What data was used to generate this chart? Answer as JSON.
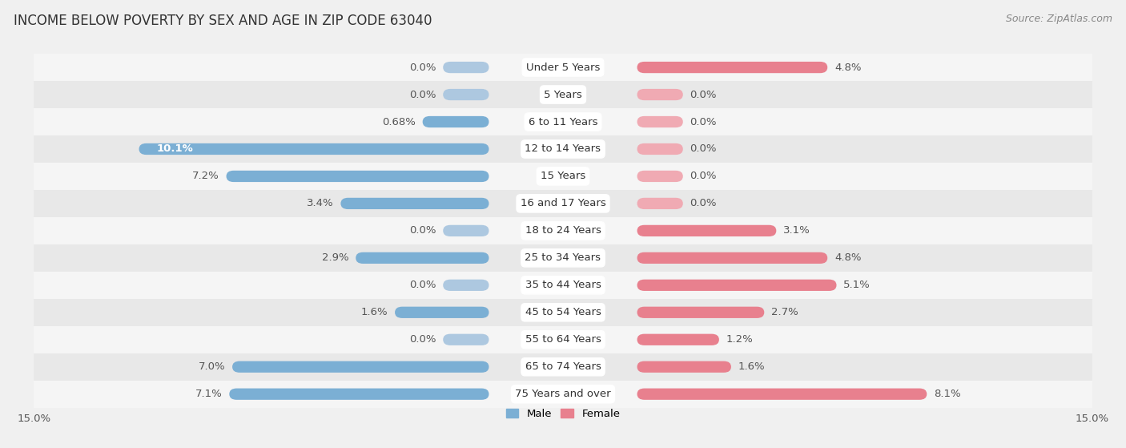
{
  "title": "INCOME BELOW POVERTY BY SEX AND AGE IN ZIP CODE 63040",
  "source": "Source: ZipAtlas.com",
  "categories": [
    "Under 5 Years",
    "5 Years",
    "6 to 11 Years",
    "12 to 14 Years",
    "15 Years",
    "16 and 17 Years",
    "18 to 24 Years",
    "25 to 34 Years",
    "35 to 44 Years",
    "45 to 54 Years",
    "55 to 64 Years",
    "65 to 74 Years",
    "75 Years and over"
  ],
  "male": [
    0.0,
    0.0,
    0.68,
    10.1,
    7.2,
    3.4,
    0.0,
    2.9,
    0.0,
    1.6,
    0.0,
    7.0,
    7.1
  ],
  "female": [
    4.8,
    0.0,
    0.0,
    0.0,
    0.0,
    0.0,
    3.1,
    4.8,
    5.1,
    2.7,
    1.2,
    1.6,
    8.1
  ],
  "male_color": "#7bafd4",
  "female_color": "#e8808e",
  "male_color_light": "#adc8e0",
  "female_color_light": "#f0aab3",
  "male_label": "Male",
  "female_label": "Female",
  "xlim": 15.0,
  "bg_color": "#f0f0f0",
  "row_bg_colors": [
    "#f5f5f5",
    "#e8e8e8"
  ],
  "title_fontsize": 12,
  "source_fontsize": 9,
  "label_fontsize": 9.5,
  "cat_fontsize": 9.5,
  "axis_fontsize": 9.5
}
